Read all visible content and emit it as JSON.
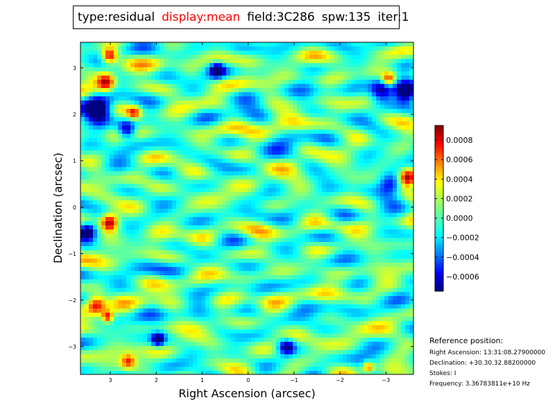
{
  "title": {
    "parts": [
      {
        "text": "type:residual",
        "color": "#000000"
      },
      {
        "text": "display:mean",
        "color": "#ff0000"
      },
      {
        "text": "field:3C286",
        "color": "#000000"
      },
      {
        "text": "spw:135",
        "color": "#000000"
      },
      {
        "text": "iter:1",
        "color": "#000000"
      }
    ]
  },
  "chart_data": {
    "type": "heatmap",
    "colormap": "jet",
    "xlabel": "Right Ascension (arcsec)",
    "ylabel": "Declination (arcsec)",
    "xlim": [
      3.65,
      -3.6
    ],
    "ylim": [
      -3.6,
      3.55
    ],
    "x_ticks": [
      3,
      2,
      1,
      0,
      -1,
      -2,
      -3
    ],
    "x_tick_labels": [
      "3",
      "2",
      "1",
      "0",
      "−1",
      "−2",
      "−3"
    ],
    "y_ticks": [
      3,
      2,
      1,
      0,
      -1,
      -2,
      -3
    ],
    "y_tick_labels": [
      "3",
      "2",
      "1",
      "0",
      "−1",
      "−2",
      "−3"
    ],
    "colorbar": {
      "vmin": -0.00075,
      "vmax": 0.00095,
      "ticks": [
        0.0008,
        0.0006,
        0.0004,
        0.0002,
        0.0,
        -0.0002,
        -0.0004,
        -0.0006
      ],
      "tick_labels": [
        "0.0008",
        "0.0006",
        "0.0004",
        "0.0002",
        "0.0000",
        "−0.0002",
        "−0.0004",
        "−0.0006"
      ]
    }
  },
  "reference": {
    "title": "Reference position:",
    "ra": "Right Ascension: 13:31:08.27900000",
    "dec": "Declination: +30.30.32.88200000",
    "stokes": "Stokes: I",
    "freq": "Frequency: 3.36783811e+10 Hz"
  }
}
